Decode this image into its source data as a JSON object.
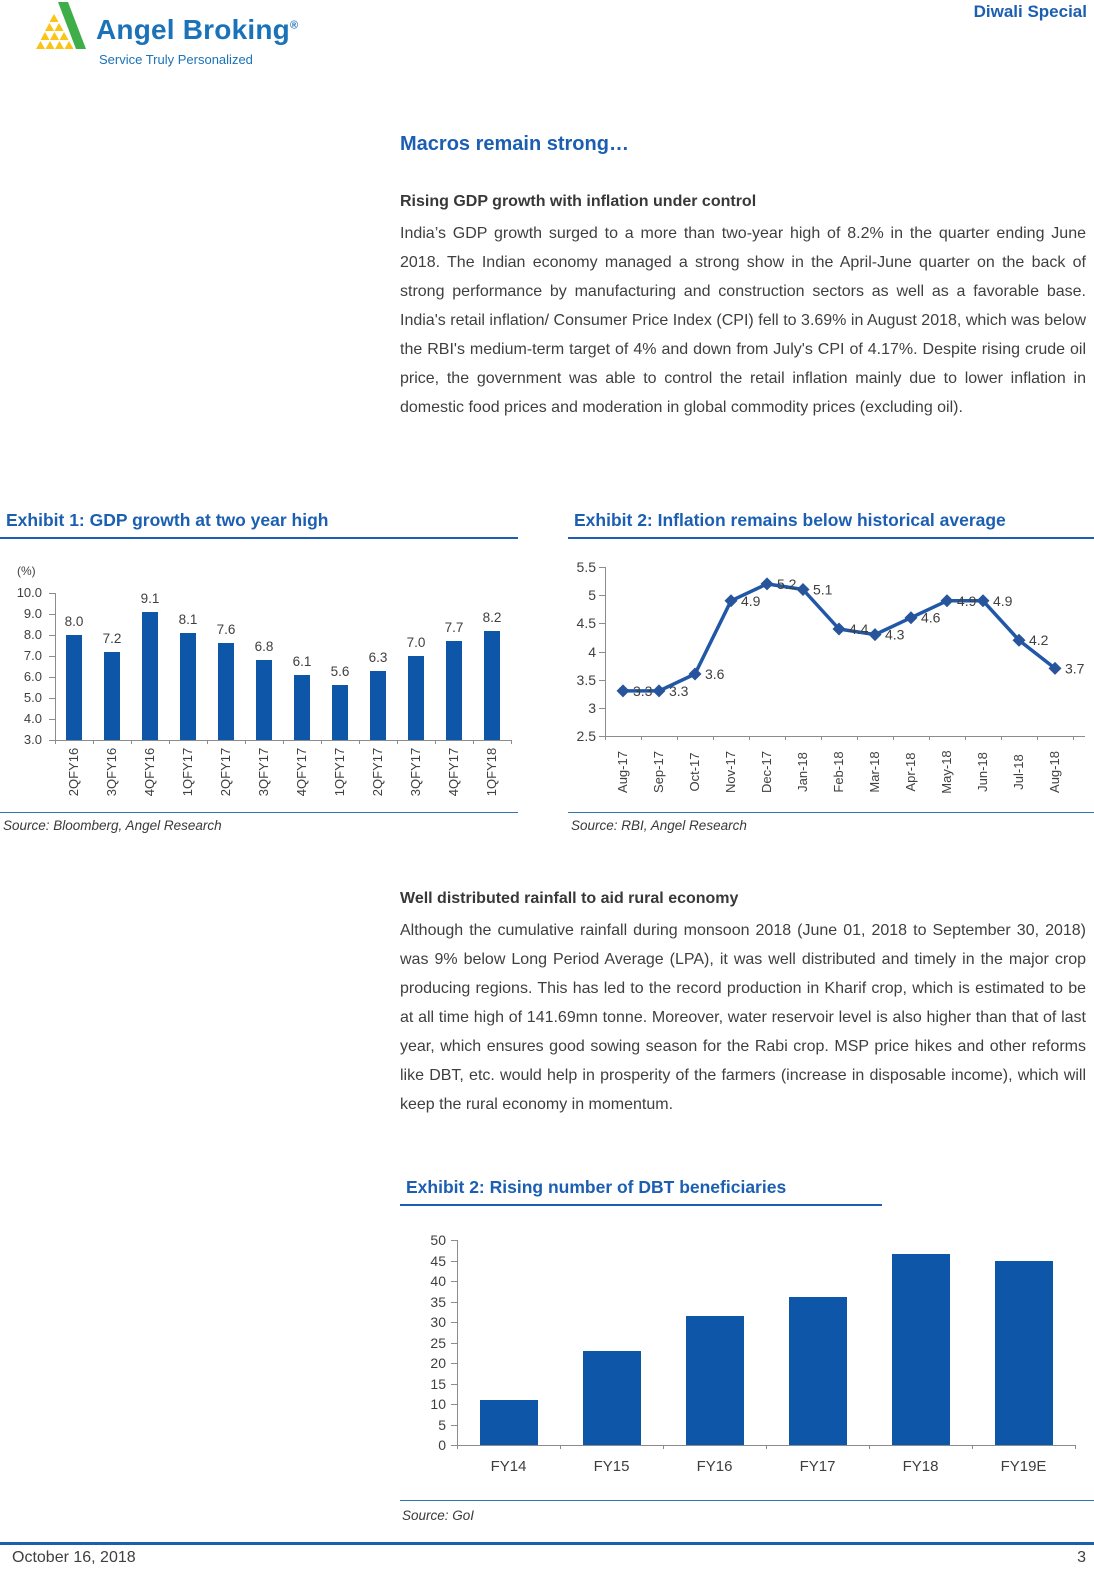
{
  "header": {
    "brand": "Angel Broking",
    "brand_mark": "®",
    "tagline": "Service Truly Personalized",
    "edition": "Diwali Special"
  },
  "page": {
    "title": "Macros remain strong…",
    "footer_date": "October 16, 2018",
    "footer_page": "3"
  },
  "sections": [
    {
      "heading": "Rising GDP growth with inflation under control",
      "body": "India’s GDP growth surged to a more than two-year high of 8.2% in the quarter ending June 2018. The Indian economy managed a strong show in the April-June quarter on the back of strong performance by manufacturing and construction sectors as well as a favorable base. India's retail inflation/ Consumer Price Index (CPI) fell to 3.69% in August 2018, which was below the RBI's medium-term target of 4% and down from July's CPI of 4.17%. Despite rising crude oil price, the government was able to control the retail inflation mainly due to lower inflation in domestic food prices and moderation in global commodity prices (excluding oil)."
    },
    {
      "heading": "Well distributed rainfall to aid rural economy",
      "body": "Although the cumulative rainfall during monsoon 2018 (June 01, 2018 to September 30, 2018) was 9% below Long Period Average (LPA), it was well distributed and timely in the major crop producing regions. This has led to the record production in Kharif crop, which is estimated to be at all time high of 141.69mn tonne. Moreover, water reservoir level is also higher than that of last year, which ensures good sowing season for the Rabi crop. MSP price hikes and other reforms like DBT, etc. would help in prosperity of the farmers (increase in disposable income), which will keep the rural economy in momentum."
    }
  ],
  "colors": {
    "accent_blue": "#1c5fb2",
    "logo_blue": "#1a72b9",
    "logo_green": "#3fae49",
    "logo_yellow": "#fbc313",
    "bar_blue": "#0e57a8",
    "line_blue": "#2157a7",
    "marker_blue": "#27549b"
  },
  "chart_data": [
    {
      "id": "gdp",
      "type": "bar",
      "title": "Exhibit 1: GDP growth at two year high",
      "unit_label": "(%)",
      "categories": [
        "2QFY16",
        "3QFY16",
        "4QFY16",
        "1QFY17",
        "2QFY17",
        "3QFY17",
        "4QFY17",
        "1QFY17",
        "2QFY17",
        "3QFY17",
        "4QFY17",
        "1QFY18"
      ],
      "values": [
        8.0,
        7.2,
        9.1,
        8.1,
        7.6,
        6.8,
        6.1,
        5.6,
        6.3,
        7.0,
        7.7,
        8.2
      ],
      "value_labels": [
        "8.0",
        "7.2",
        "9.1",
        "8.1",
        "7.6",
        "6.8",
        "6.1",
        "5.6",
        "6.3",
        "7.0",
        "7.7",
        "8.2"
      ],
      "ylim": [
        3.0,
        10.0
      ],
      "yticks": [
        "10.0",
        "9.0",
        "8.0",
        "7.0",
        "6.0",
        "5.0",
        "4.0",
        "3.0"
      ],
      "grid": false,
      "legend": "none",
      "bar_color": "#0e57a8",
      "source": "Source: Bloomberg, Angel Research"
    },
    {
      "id": "inflation",
      "type": "line",
      "title": "Exhibit 2: Inflation remains below historical average",
      "x": [
        "Aug-17",
        "Sep-17",
        "Oct-17",
        "Nov-17",
        "Dec-17",
        "Jan-18",
        "Feb-18",
        "Mar-18",
        "Apr-18",
        "May-18",
        "Jun-18",
        "Jul-18",
        "Aug-18"
      ],
      "values": [
        3.3,
        3.3,
        3.6,
        4.9,
        5.2,
        5.1,
        4.4,
        4.3,
        4.6,
        4.9,
        4.9,
        4.2,
        3.7
      ],
      "value_labels": [
        "3.3",
        "3.3",
        "3.6",
        "4.9",
        "5.2",
        "5.1",
        "4.4",
        "4.3",
        "4.6",
        "4.9",
        "4.9",
        "4.2",
        "3.7"
      ],
      "ylim": [
        2.5,
        5.5
      ],
      "yticks": [
        "5.5",
        "5",
        "4.5",
        "4",
        "3.5",
        "3",
        "2.5"
      ],
      "grid": false,
      "legend": "none",
      "line_color": "#2157a7",
      "marker": "diamond",
      "marker_color": "#27549b",
      "source": "Source: RBI, Angel Research"
    },
    {
      "id": "dbt",
      "type": "bar",
      "title": "Exhibit 2: Rising number of DBT beneficiaries",
      "categories": [
        "FY14",
        "FY15",
        "FY16",
        "FY17",
        "FY18",
        "FY19E"
      ],
      "values": [
        11,
        23,
        31.5,
        36,
        46.5,
        45
      ],
      "ylim": [
        0,
        50
      ],
      "yticks": [
        "50",
        "45",
        "40",
        "35",
        "30",
        "25",
        "20",
        "15",
        "10",
        "5",
        "0"
      ],
      "grid": false,
      "legend": "none",
      "bar_color": "#0e57a8",
      "source": "Source: GoI"
    }
  ]
}
